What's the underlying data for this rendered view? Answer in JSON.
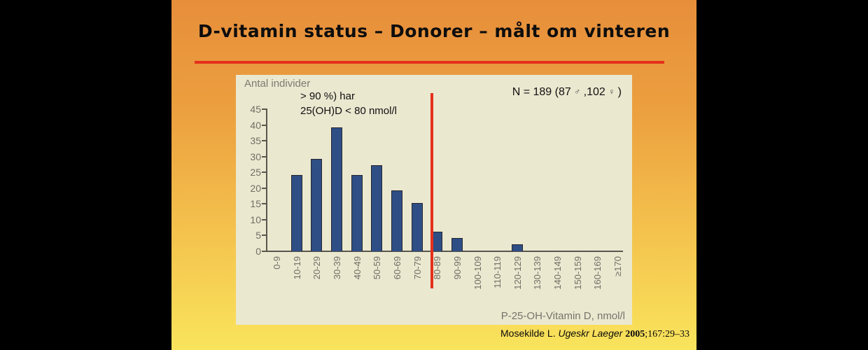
{
  "slide": {
    "title": "D-vitamin status – Donorer – målt om vinteren",
    "citation": {
      "author": "Mosekilde L. ",
      "journal": "Ugeskr Laeger ",
      "year": "2005",
      "pages": ";167:29–33"
    }
  },
  "chart_data": {
    "type": "bar",
    "title": "",
    "categories": [
      "0-9",
      "10-19",
      "20-29",
      "30-39",
      "40-49",
      "50-59",
      "60-69",
      "70-79",
      "80-89",
      "90-99",
      "100-109",
      "110-119",
      "120-129",
      "130-139",
      "140-149",
      "150-159",
      "160-169",
      "≥170"
    ],
    "values": [
      0,
      24,
      29,
      39,
      24,
      27,
      19,
      15,
      6,
      4,
      0,
      0,
      2,
      0,
      0,
      0,
      0,
      0
    ],
    "ylabel": "Antal individer",
    "xlabel": "P-25-OH-Vitamin D, nmol/l",
    "ylim": [
      0,
      45
    ],
    "yticks": [
      0,
      5,
      10,
      15,
      20,
      25,
      30,
      35,
      40,
      45
    ],
    "grid": false,
    "legend": false,
    "bar_color": "#2e4e85",
    "bar_edge_color": "#27272f",
    "background_color": "#ebe8d0",
    "annotations": {
      "line1": "> 90 %) har",
      "line2": "25(OH)D < 80 nmol/l"
    },
    "n_parts": {
      "prefix": "N = 189 (87 ",
      "male_symbol": "♂",
      "mid": " ,102 ",
      "female_symbol": "♀",
      "suffix": " )"
    },
    "reference_line": {
      "before_category": "80-89",
      "color": "#e4301c"
    }
  },
  "colors": {
    "slide_top": "#e78e3b",
    "slide_bottom": "#f9e45c",
    "underline_red": "#e4301c",
    "axis_gray": "#58574e",
    "label_gray": "#6f6e64"
  }
}
